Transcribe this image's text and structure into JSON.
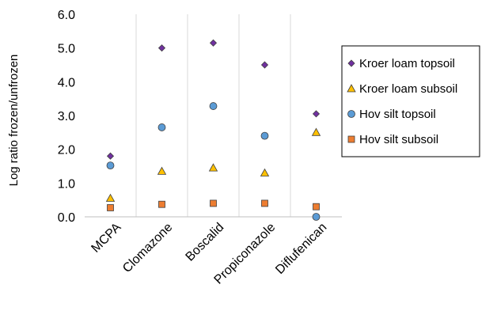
{
  "chart_data": {
    "type": "scatter",
    "title": "",
    "xlabel": "",
    "ylabel": "Log ratio frozen/unfrozen",
    "categories": [
      "MCPA",
      "Clomazone",
      "Boscalid",
      "Propiconazole",
      "Diflufenican"
    ],
    "ylim": [
      0,
      6
    ],
    "yticks": [
      "0.0",
      "1.0",
      "2.0",
      "3.0",
      "4.0",
      "5.0",
      "6.0"
    ],
    "grid": "vertical category separators",
    "legend_position": "right",
    "series": [
      {
        "name": "Kroer loam topsoil",
        "marker": "diamond",
        "color": "#7030a0",
        "values": [
          1.8,
          5.0,
          5.15,
          4.5,
          3.05
        ]
      },
      {
        "name": "Kroer loam subsoil",
        "marker": "triangle",
        "color": "#ffc000",
        "values": [
          0.55,
          1.35,
          1.45,
          1.3,
          2.5
        ]
      },
      {
        "name": "Hov silt topsoil",
        "marker": "circle",
        "color": "#5b9bd5",
        "values": [
          1.52,
          2.65,
          3.28,
          2.4,
          0.0
        ]
      },
      {
        "name": "Hov silt subsoil",
        "marker": "square",
        "color": "#ed7d31",
        "values": [
          0.27,
          0.37,
          0.4,
          0.4,
          0.3
        ]
      }
    ]
  }
}
